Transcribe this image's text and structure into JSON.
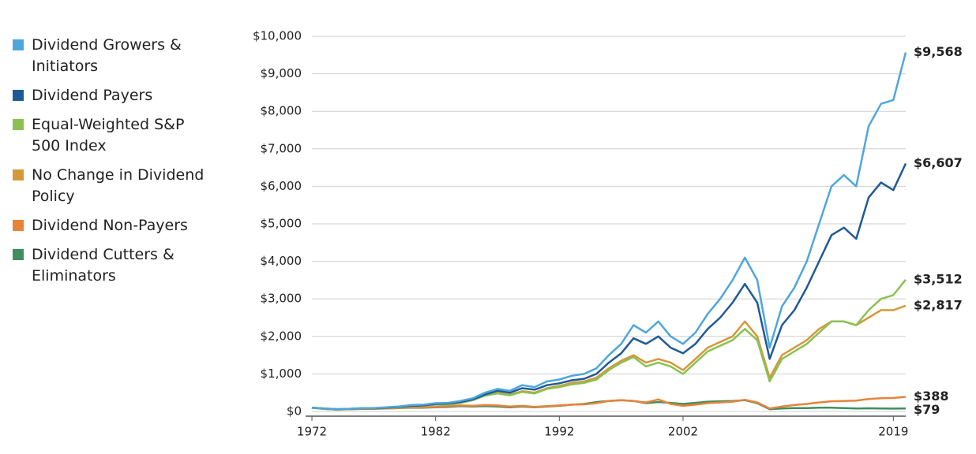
{
  "chart_data": {
    "type": "line",
    "x": [
      1972,
      1973,
      1974,
      1975,
      1976,
      1977,
      1978,
      1979,
      1980,
      1981,
      1982,
      1983,
      1984,
      1985,
      1986,
      1987,
      1988,
      1989,
      1990,
      1991,
      1992,
      1993,
      1994,
      1995,
      1996,
      1997,
      1998,
      1999,
      2000,
      2001,
      2002,
      2003,
      2004,
      2005,
      2006,
      2007,
      2008,
      2009,
      2010,
      2011,
      2012,
      2013,
      2014,
      2015,
      2016,
      2017,
      2018,
      2019,
      2020
    ],
    "xlim": [
      1972,
      2020
    ],
    "xticks": [
      1972,
      1982,
      1992,
      2002,
      2019
    ],
    "ylim": [
      0,
      10000
    ],
    "yticks": [
      {
        "value": 0,
        "label": "$0"
      },
      {
        "value": 1000,
        "label": "$1,000"
      },
      {
        "value": 2000,
        "label": "$2,000"
      },
      {
        "value": 3000,
        "label": "$3,000"
      },
      {
        "value": 4000,
        "label": "$4,000"
      },
      {
        "value": 5000,
        "label": "$5,000"
      },
      {
        "value": 6000,
        "label": "$6,000"
      },
      {
        "value": 7000,
        "label": "$7,000"
      },
      {
        "value": 8000,
        "label": "$8,000"
      },
      {
        "value": 9000,
        "label": "$9,000"
      },
      {
        "value": 10000,
        "label": "$10,000"
      }
    ],
    "grid": true,
    "legend": "left",
    "series": [
      {
        "name": "Dividend Growers & Initiators",
        "color": "#4fa6dc",
        "values": [
          100,
          80,
          60,
          70,
          90,
          90,
          110,
          130,
          170,
          180,
          220,
          230,
          280,
          350,
          500,
          600,
          550,
          700,
          650,
          800,
          850,
          950,
          1000,
          1150,
          1500,
          1800,
          2300,
          2100,
          2400,
          2000,
          1800,
          2100,
          2600,
          3000,
          3500,
          4100,
          3500,
          1700,
          2800,
          3300,
          4000,
          5000,
          6000,
          6300,
          6000,
          7600,
          8200,
          8300,
          9568
        ],
        "value_labels": [
          null,
          null,
          null,
          null,
          null,
          null,
          null,
          null,
          null,
          null,
          null,
          null,
          null,
          null,
          null,
          null,
          null,
          null,
          null,
          null,
          null,
          null,
          null,
          null,
          null,
          null,
          null,
          null,
          null,
          null,
          null,
          null,
          null,
          null,
          null,
          null,
          null,
          null,
          null,
          null,
          null,
          null,
          null,
          null,
          null,
          null,
          null,
          null,
          "$9,568"
        ]
      },
      {
        "name": "Dividend Payers",
        "color": "#1f5a96",
        "values": [
          100,
          80,
          60,
          70,
          85,
          85,
          100,
          120,
          150,
          160,
          200,
          210,
          250,
          320,
          450,
          550,
          500,
          620,
          580,
          700,
          750,
          830,
          870,
          1000,
          1300,
          1550,
          1950,
          1800,
          2000,
          1700,
          1550,
          1800,
          2200,
          2500,
          2900,
          3400,
          2900,
          1400,
          2300,
          2700,
          3300,
          4000,
          4700,
          4900,
          4600,
          5700,
          6100,
          5900,
          6607
        ],
        "value_labels": [
          null,
          null,
          null,
          null,
          null,
          null,
          null,
          null,
          null,
          null,
          null,
          null,
          null,
          null,
          null,
          null,
          null,
          null,
          null,
          null,
          null,
          null,
          null,
          null,
          null,
          null,
          null,
          null,
          null,
          null,
          null,
          null,
          null,
          null,
          null,
          null,
          null,
          null,
          null,
          null,
          null,
          null,
          null,
          null,
          null,
          null,
          null,
          null,
          "$6,607"
        ]
      },
      {
        "name": "Equal-Weighted S&P 500 Index",
        "color": "#8cc152",
        "values": [
          100,
          75,
          55,
          65,
          80,
          80,
          90,
          110,
          140,
          150,
          180,
          190,
          230,
          300,
          420,
          480,
          430,
          520,
          480,
          600,
          650,
          720,
          760,
          850,
          1100,
          1300,
          1450,
          1200,
          1300,
          1200,
          1000,
          1300,
          1600,
          1750,
          1900,
          2200,
          1900,
          800,
          1400,
          1600,
          1800,
          2100,
          2400,
          2400,
          2300,
          2700,
          3000,
          3100,
          3512
        ],
        "value_labels": [
          null,
          null,
          null,
          null,
          null,
          null,
          null,
          null,
          null,
          null,
          null,
          null,
          null,
          null,
          null,
          null,
          null,
          null,
          null,
          null,
          null,
          null,
          null,
          null,
          null,
          null,
          null,
          null,
          null,
          null,
          null,
          null,
          null,
          null,
          null,
          null,
          null,
          null,
          null,
          null,
          null,
          null,
          null,
          null,
          null,
          null,
          null,
          null,
          "$3,512"
        ]
      },
      {
        "name": "No Change in Dividend Policy",
        "color": "#d4993a",
        "values": [
          100,
          75,
          55,
          65,
          80,
          80,
          90,
          110,
          140,
          150,
          180,
          190,
          230,
          300,
          430,
          500,
          450,
          540,
          500,
          620,
          680,
          760,
          800,
          900,
          1150,
          1350,
          1500,
          1300,
          1400,
          1300,
          1100,
          1400,
          1700,
          1850,
          2000,
          2400,
          2000,
          900,
          1500,
          1700,
          1900,
          2200,
          2400,
          2400,
          2300,
          2500,
          2700,
          2700,
          2817
        ],
        "value_labels": [
          null,
          null,
          null,
          null,
          null,
          null,
          null,
          null,
          null,
          null,
          null,
          null,
          null,
          null,
          null,
          null,
          null,
          null,
          null,
          null,
          null,
          null,
          null,
          null,
          null,
          null,
          null,
          null,
          null,
          null,
          null,
          null,
          null,
          null,
          null,
          null,
          null,
          null,
          null,
          null,
          null,
          null,
          null,
          null,
          null,
          null,
          null,
          null,
          "$2,817"
        ]
      },
      {
        "name": "Dividend Non-Payers",
        "color": "#e8833a",
        "values": [
          100,
          70,
          50,
          60,
          70,
          70,
          80,
          90,
          110,
          110,
          120,
          140,
          160,
          150,
          170,
          160,
          130,
          150,
          120,
          140,
          160,
          180,
          190,
          220,
          280,
          300,
          280,
          240,
          320,
          200,
          150,
          180,
          220,
          240,
          260,
          310,
          240,
          80,
          130,
          170,
          200,
          240,
          270,
          280,
          290,
          330,
          350,
          360,
          388
        ],
        "value_labels": [
          null,
          null,
          null,
          null,
          null,
          null,
          null,
          null,
          null,
          null,
          null,
          null,
          null,
          null,
          null,
          null,
          null,
          null,
          null,
          null,
          null,
          null,
          null,
          null,
          null,
          null,
          null,
          null,
          null,
          null,
          null,
          null,
          null,
          null,
          null,
          null,
          null,
          null,
          null,
          null,
          null,
          null,
          null,
          null,
          null,
          null,
          null,
          null,
          "$388"
        ]
      },
      {
        "name": "Dividend Cutters & Eliminators",
        "color": "#3f8f5f",
        "values": [
          100,
          70,
          50,
          60,
          70,
          70,
          80,
          90,
          100,
          100,
          110,
          120,
          140,
          130,
          140,
          130,
          110,
          130,
          110,
          130,
          150,
          180,
          200,
          250,
          280,
          300,
          280,
          220,
          250,
          230,
          200,
          230,
          260,
          270,
          280,
          300,
          220,
          60,
          80,
          90,
          90,
          100,
          100,
          90,
          80,
          85,
          80,
          75,
          79
        ],
        "value_labels": [
          null,
          null,
          null,
          null,
          null,
          null,
          null,
          null,
          null,
          null,
          null,
          null,
          null,
          null,
          null,
          null,
          null,
          null,
          null,
          null,
          null,
          null,
          null,
          null,
          null,
          null,
          null,
          null,
          null,
          null,
          null,
          null,
          null,
          null,
          null,
          null,
          null,
          null,
          null,
          null,
          null,
          null,
          null,
          null,
          null,
          null,
          null,
          null,
          "$79"
        ]
      }
    ]
  }
}
